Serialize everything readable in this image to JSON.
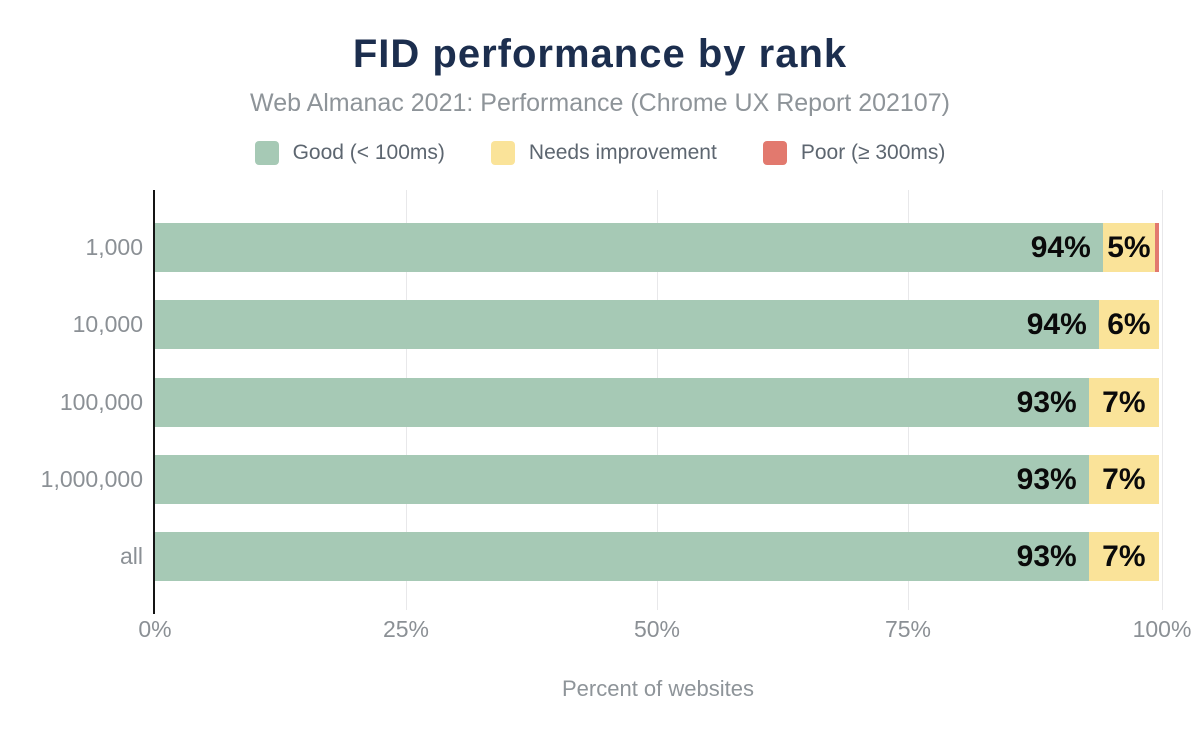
{
  "header": {
    "title": "FID performance by rank",
    "subtitle": "Web Almanac 2021: Performance (Chrome UX Report 202107)"
  },
  "legend": [
    {
      "key": "good",
      "label": "Good (< 100ms)",
      "color": "#a6c9b5"
    },
    {
      "key": "needs-improvement",
      "label": "Needs improvement",
      "color": "#fae399"
    },
    {
      "key": "poor",
      "label": "Poor (≥ 300ms)",
      "color": "#e2796e"
    }
  ],
  "chart_data": {
    "type": "bar",
    "orientation": "horizontal",
    "stacked": true,
    "title": "FID performance by rank",
    "subtitle": "Web Almanac 2021: Performance (Chrome UX Report 202107)",
    "categories": [
      "1,000",
      "10,000",
      "100,000",
      "1,000,000",
      "all"
    ],
    "series": [
      {
        "key": "good",
        "name": "Good (< 100ms)",
        "color": "#a6c9b5",
        "values": [
          94.4,
          94,
          93,
          93,
          93
        ],
        "labels": [
          "94%",
          "94%",
          "93%",
          "93%",
          "93%"
        ]
      },
      {
        "key": "needs-improvement",
        "name": "Needs improvement",
        "color": "#fae399",
        "values": [
          5.2,
          6,
          7,
          7,
          7
        ],
        "labels": [
          "5%",
          "6%",
          "7%",
          "7%",
          "7%"
        ]
      },
      {
        "key": "poor",
        "name": "Poor (≥ 300ms)",
        "color": "#e2796e",
        "values": [
          0.4,
          0,
          0,
          0,
          0
        ],
        "labels": [
          "",
          "",
          "",
          "",
          ""
        ]
      }
    ],
    "xlabel": "Percent of websites",
    "xlim": [
      0,
      100
    ],
    "x_ticks": [
      {
        "label": "0%",
        "pct": 0
      },
      {
        "label": "25%",
        "pct": 25
      },
      {
        "label": "50%",
        "pct": 50
      },
      {
        "label": "75%",
        "pct": 75
      },
      {
        "label": "100%",
        "pct": 100
      }
    ],
    "grid": "vertical",
    "legend_position": "top",
    "label_text_color": "#0a0a0a",
    "axis_text_color": "#8b9095",
    "title_color": "#1c2e4e"
  }
}
